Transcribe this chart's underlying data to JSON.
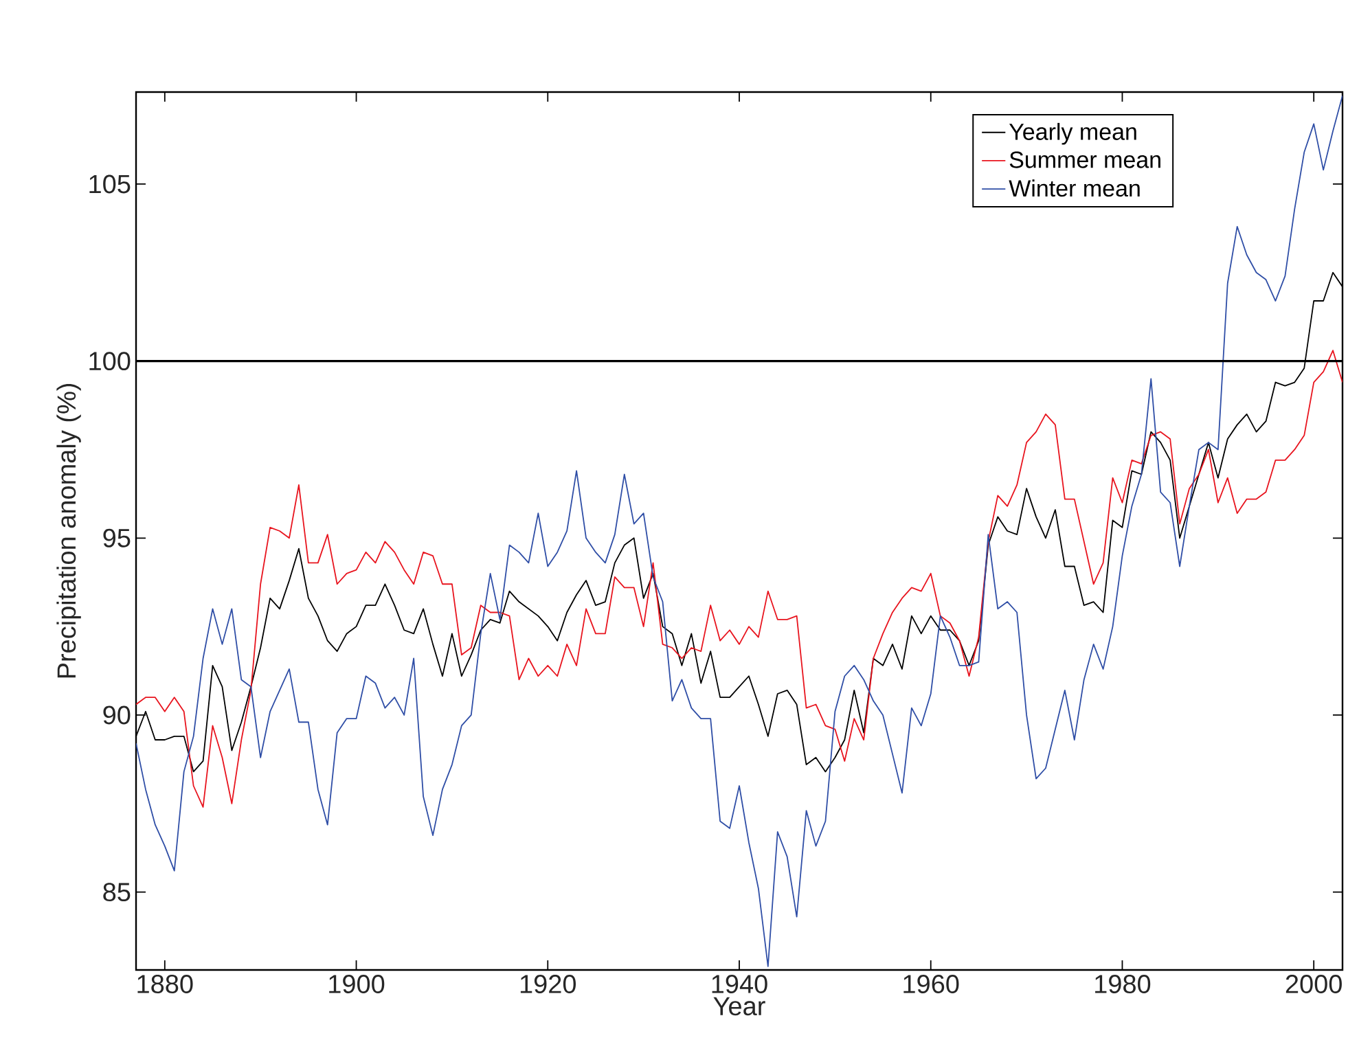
{
  "chart_data": {
    "type": "line",
    "xlabel": "Year",
    "ylabel": "Precipitation anomaly (%)",
    "x": [
      1877,
      1878,
      1879,
      1880,
      1881,
      1882,
      1883,
      1884,
      1885,
      1886,
      1887,
      1888,
      1889,
      1890,
      1891,
      1892,
      1893,
      1894,
      1895,
      1896,
      1897,
      1898,
      1899,
      1900,
      1901,
      1902,
      1903,
      1904,
      1905,
      1906,
      1907,
      1908,
      1909,
      1910,
      1911,
      1912,
      1913,
      1914,
      1915,
      1916,
      1917,
      1918,
      1919,
      1920,
      1921,
      1922,
      1923,
      1924,
      1925,
      1926,
      1927,
      1928,
      1929,
      1930,
      1931,
      1932,
      1933,
      1934,
      1935,
      1936,
      1937,
      1938,
      1939,
      1940,
      1941,
      1942,
      1943,
      1944,
      1945,
      1946,
      1947,
      1948,
      1949,
      1950,
      1951,
      1952,
      1953,
      1954,
      1955,
      1956,
      1957,
      1958,
      1959,
      1960,
      1961,
      1962,
      1963,
      1964,
      1965,
      1966,
      1967,
      1968,
      1969,
      1970,
      1971,
      1972,
      1973,
      1974,
      1975,
      1976,
      1977,
      1978,
      1979,
      1980,
      1981,
      1982,
      1983,
      1984,
      1985,
      1986,
      1987,
      1988,
      1989,
      1990,
      1991,
      1992,
      1993,
      1994,
      1995,
      1996,
      1997,
      1998,
      1999,
      2000,
      2001,
      2002,
      2003
    ],
    "series": [
      {
        "name": "Yearly mean",
        "color": "#000000",
        "values": [
          89.4,
          90.1,
          89.3,
          89.3,
          89.4,
          89.4,
          88.4,
          88.7,
          91.4,
          90.8,
          89.0,
          89.8,
          90.8,
          91.9,
          93.3,
          93.0,
          93.8,
          94.7,
          93.3,
          92.8,
          92.1,
          91.8,
          92.3,
          92.5,
          93.1,
          93.1,
          93.7,
          93.1,
          92.4,
          92.3,
          93.0,
          92.0,
          91.1,
          92.3,
          91.1,
          91.7,
          92.4,
          92.7,
          92.6,
          93.5,
          93.2,
          93.0,
          92.8,
          92.5,
          92.1,
          92.9,
          93.4,
          93.8,
          93.1,
          93.2,
          94.3,
          94.8,
          95.0,
          93.3,
          94.0,
          92.5,
          92.3,
          91.4,
          92.3,
          90.9,
          91.8,
          90.5,
          90.5,
          90.8,
          91.1,
          90.3,
          89.4,
          90.6,
          90.7,
          90.3,
          88.6,
          88.8,
          88.4,
          88.8,
          89.3,
          90.7,
          89.5,
          91.6,
          91.4,
          92.0,
          91.3,
          92.8,
          92.3,
          92.8,
          92.4,
          92.4,
          92.1,
          91.4,
          92.1,
          94.8,
          95.6,
          95.2,
          95.1,
          96.4,
          95.6,
          95.0,
          95.8,
          94.2,
          94.2,
          93.1,
          93.2,
          92.9,
          95.5,
          95.3,
          96.9,
          96.8,
          98.0,
          97.7,
          97.2,
          95.0,
          95.9,
          96.8,
          97.7,
          96.7,
          97.8,
          98.2,
          98.5,
          98.0,
          98.3,
          99.4,
          99.3,
          99.4,
          99.8,
          101.7,
          101.7,
          102.5,
          102.1
        ]
      },
      {
        "name": "Summer mean",
        "color": "#e8141e",
        "values": [
          90.3,
          90.5,
          90.5,
          90.1,
          90.5,
          90.1,
          88.0,
          87.4,
          89.7,
          88.8,
          87.5,
          89.3,
          90.7,
          93.7,
          95.3,
          95.2,
          95.0,
          96.5,
          94.3,
          94.3,
          95.1,
          93.7,
          94.0,
          94.1,
          94.6,
          94.3,
          94.9,
          94.6,
          94.1,
          93.7,
          94.6,
          94.5,
          93.7,
          93.7,
          91.7,
          91.9,
          93.1,
          92.9,
          92.9,
          92.8,
          91.0,
          91.6,
          91.1,
          91.4,
          91.1,
          92.0,
          91.4,
          93.0,
          92.3,
          92.3,
          93.9,
          93.6,
          93.6,
          92.5,
          94.3,
          92.0,
          91.9,
          91.6,
          91.9,
          91.8,
          93.1,
          92.1,
          92.4,
          92.0,
          92.5,
          92.2,
          93.5,
          92.7,
          92.7,
          92.8,
          90.2,
          90.3,
          89.7,
          89.6,
          88.7,
          89.9,
          89.3,
          91.6,
          92.3,
          92.9,
          93.3,
          93.6,
          93.5,
          94.0,
          92.8,
          92.6,
          92.1,
          91.1,
          92.2,
          94.9,
          96.2,
          95.9,
          96.5,
          97.7,
          98.0,
          98.5,
          98.2,
          96.1,
          96.1,
          94.9,
          93.7,
          94.3,
          96.7,
          96.0,
          97.2,
          97.1,
          97.9,
          98.0,
          97.8,
          95.4,
          96.4,
          96.8,
          97.5,
          96.0,
          96.7,
          95.7,
          96.1,
          96.1,
          96.3,
          97.2,
          97.2,
          97.5,
          97.9,
          99.4,
          99.7,
          100.3,
          99.4
        ]
      },
      {
        "name": "Winter mean",
        "color": "#2f4ea6",
        "values": [
          89.2,
          87.9,
          86.9,
          86.3,
          85.6,
          88.4,
          89.4,
          91.6,
          93.0,
          92.0,
          93.0,
          91.0,
          90.8,
          88.8,
          90.1,
          90.7,
          91.3,
          89.8,
          89.8,
          87.9,
          86.9,
          89.5,
          89.9,
          89.9,
          91.1,
          90.9,
          90.2,
          90.5,
          90.0,
          91.6,
          87.7,
          86.6,
          87.9,
          88.6,
          89.7,
          90.0,
          92.3,
          94.0,
          92.7,
          94.8,
          94.6,
          94.3,
          95.7,
          94.2,
          94.6,
          95.2,
          96.9,
          95.0,
          94.6,
          94.3,
          95.1,
          96.8,
          95.4,
          95.7,
          93.9,
          93.2,
          90.4,
          91.0,
          90.2,
          89.9,
          89.9,
          87.0,
          86.8,
          88.0,
          86.4,
          85.1,
          82.9,
          86.7,
          86.0,
          84.3,
          87.3,
          86.3,
          87.0,
          90.1,
          91.1,
          91.4,
          91.0,
          90.4,
          90.0,
          88.9,
          87.8,
          90.2,
          89.7,
          90.6,
          92.8,
          92.2,
          91.4,
          91.4,
          91.5,
          95.1,
          93.0,
          93.2,
          92.9,
          90.0,
          88.2,
          88.5,
          89.6,
          90.7,
          89.3,
          91.0,
          92.0,
          91.3,
          92.5,
          94.5,
          95.9,
          96.8,
          99.5,
          96.3,
          96.0,
          94.2,
          95.9,
          97.5,
          97.7,
          97.5,
          102.2,
          103.8,
          103.0,
          102.5,
          102.3,
          101.7,
          102.4,
          104.3,
          105.9,
          106.7,
          105.4,
          106.5,
          107.5
        ]
      }
    ],
    "xlim": [
      1877,
      2003
    ],
    "ylim": [
      82.8,
      107.6
    ],
    "xticks": [
      1880,
      1900,
      1920,
      1940,
      1960,
      1980,
      2000
    ],
    "yticks": [
      85,
      90,
      95,
      100,
      105
    ],
    "ref_lines": [
      {
        "axis": "y",
        "value": 100,
        "color": "#000000"
      }
    ],
    "grid": false,
    "legend": "top right"
  }
}
